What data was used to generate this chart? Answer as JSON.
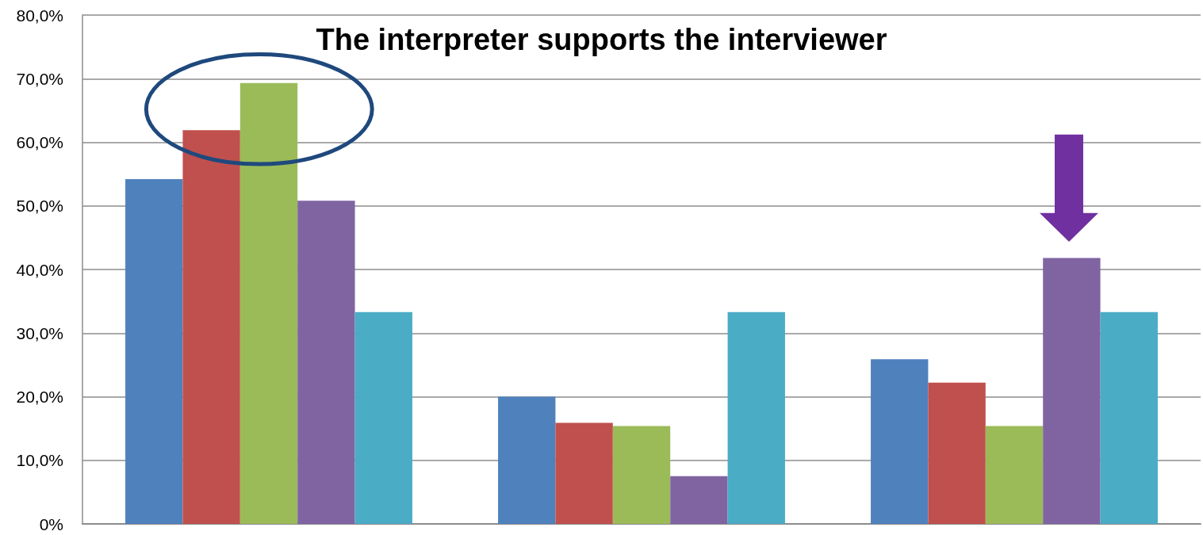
{
  "chart_data": {
    "type": "bar",
    "title": "The interpreter supports the interviewer",
    "categories": [
      null,
      null,
      null
    ],
    "series": [
      {
        "color": "#4f81bd",
        "values": [
          54.2,
          20.0,
          25.9
        ]
      },
      {
        "color": "#c0504d",
        "values": [
          61.9,
          15.9,
          22.2
        ]
      },
      {
        "color": "#9bbb59",
        "values": [
          69.3,
          15.4,
          15.4
        ]
      },
      {
        "color": "#8064a2",
        "values": [
          50.8,
          7.5,
          41.8
        ]
      },
      {
        "color": "#4bacc6",
        "values": [
          33.3,
          33.3,
          33.3
        ]
      }
    ],
    "ylim": [
      0,
      80
    ],
    "yticks": [
      {
        "value": 0,
        "label": "0%"
      },
      {
        "value": 10,
        "label": "10,0%"
      },
      {
        "value": 20,
        "label": "20,0%"
      },
      {
        "value": 30,
        "label": "30,0%"
      },
      {
        "value": 40,
        "label": "40,0%"
      },
      {
        "value": 50,
        "label": "50,0%"
      },
      {
        "value": 60,
        "label": "60,0%"
      },
      {
        "value": 70,
        "label": "70,0%"
      },
      {
        "value": 80,
        "label": "80,0%"
      }
    ],
    "grid": "y"
  }
}
